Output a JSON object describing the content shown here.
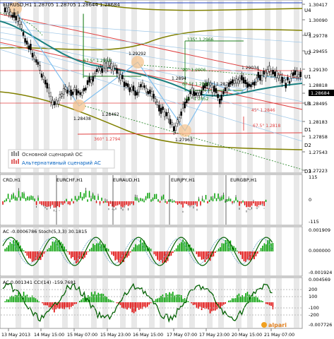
{
  "main": {
    "header": {
      "symbol": "EURUSD,H1",
      "ohlc": "1.28705 1.28705 1.28644 1.28684"
    },
    "price_axis": [
      "1.30417",
      "1.30090",
      "1.29778",
      "1.29455",
      "1.29130",
      "1.28818",
      "1.28684",
      "1.28495",
      "1.28183",
      "1.27858",
      "1.27543",
      "1.27223"
    ],
    "current_price": "1.28684",
    "right_labels": [
      "U4",
      "U3",
      "U2",
      "U1",
      "LB",
      "D1",
      "D2",
      "D3"
    ],
    "chart_labels": [
      "1.29292",
      "67.5° 1.2938",
      "135° 1.2966",
      "90° 1.2906",
      "1.29034",
      "67.5° 1.2881",
      "1.28779",
      "45° 1.2852",
      "1.2894",
      "1.28462",
      "1.28438",
      "360° 1.2794",
      "45° 1.2846",
      "67.5° 1.2818",
      "1.27963"
    ],
    "legend": {
      "item1": "Основной сценарий ОС",
      "item2": "Альтернативный сценарий АС"
    }
  },
  "currency_panel": {
    "labels": [
      "CRD,H1",
      "EURCHF,H1",
      "EURAUD,H1",
      "EURJPY,H1",
      "EURGBP,H1"
    ],
    "axis": [
      "115",
      "0",
      "-115"
    ]
  },
  "ac_panel": {
    "label": "AC -0.0006786  Stoch(5,3,3) 30.1815",
    "axis": [
      "0.001909",
      "0.000000",
      "-0.001924"
    ]
  },
  "cci_panel": {
    "label": "AC 0.001341  CCI(14) -159.7681",
    "axis": [
      "0.004569",
      "200",
      "100",
      "-100",
      "-200",
      "-0.007726"
    ]
  },
  "time_axis": [
    "13 May 2013",
    "14 May 15:00",
    "15 May 07:00",
    "15 May 23:00",
    "16 May 15:00",
    "17 May 07:00",
    "17 May 23:00",
    "20 May 15:00",
    "21 May 07:00"
  ],
  "logo": "alpari",
  "colors": {
    "bull": "#00b000",
    "bear": "#e00000",
    "wave": "#2a6a9a",
    "support": "#808000",
    "accent": "#e04040"
  }
}
